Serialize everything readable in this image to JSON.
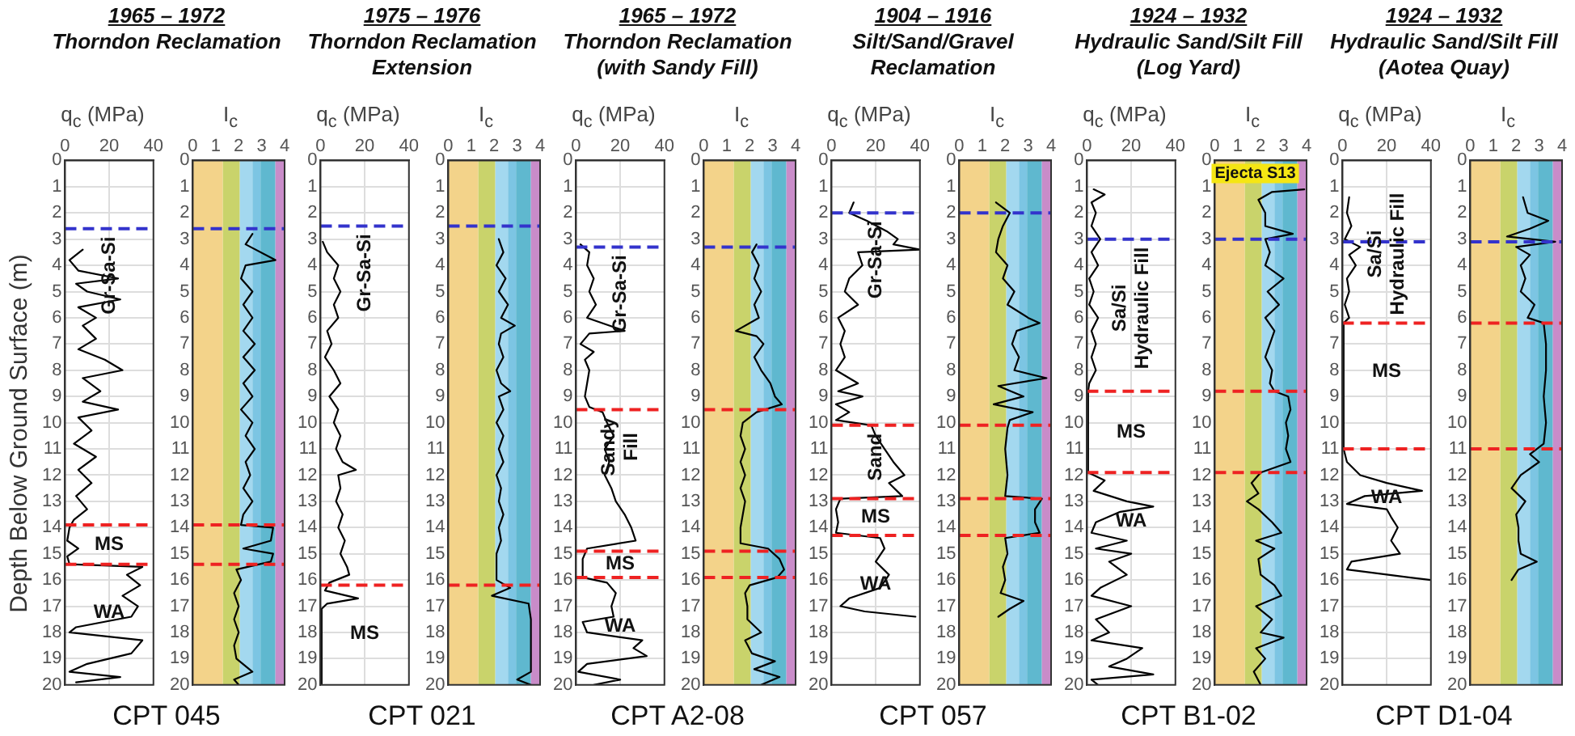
{
  "chart_data": [
    {
      "type": "line",
      "title": "1965 – 1972",
      "subtitle": "Thorndon Reclamation",
      "xlabel": "q$_{c}$ (MPa)",
      "ylabel": "Depth Below Ground Surface (m)",
      "xlim": [
        0,
        40
      ],
      "xticks": [
        0,
        20,
        40
      ],
      "ylim": [
        20,
        0
      ],
      "yticks": [
        0,
        1,
        2,
        3,
        4,
        5,
        6,
        7,
        8,
        9,
        10,
        11,
        12,
        13,
        14,
        15,
        16,
        17,
        18,
        19,
        20
      ],
      "grid": true,
      "series": [
        {
          "color": "#000000",
          "x": [
            8,
            2,
            6,
            24,
            5,
            10,
            25,
            6,
            14,
            8,
            14,
            6,
            18,
            26,
            8,
            16,
            8,
            24,
            6,
            12,
            4,
            14,
            6,
            12,
            5,
            10,
            4,
            2,
            1,
            6,
            1,
            2,
            35,
            28,
            34,
            26,
            33,
            30,
            5,
            2,
            35,
            30,
            10,
            2,
            25,
            5
          ],
          "values": [
            3.4,
            3.8,
            4.2,
            4.5,
            4.7,
            5.0,
            5.3,
            5.6,
            6.0,
            6.3,
            6.8,
            7.2,
            7.6,
            8.0,
            8.3,
            8.8,
            9.2,
            9.5,
            9.8,
            10.3,
            10.8,
            11.3,
            11.8,
            12.3,
            12.8,
            13.3,
            13.7,
            14.0,
            14.5,
            14.8,
            15.1,
            15.4,
            15.5,
            15.8,
            16.2,
            16.6,
            17.0,
            17.4,
            17.8,
            18.0,
            18.3,
            18.8,
            19.2,
            19.5,
            19.7,
            19.9
          ]
        }
      ],
      "ref_lines": [
        {
          "axis": "y",
          "value": 2.6,
          "color": "#3333cc",
          "line_style": "dashed",
          "label": "Gr-Sa-Si"
        },
        {
          "axis": "y",
          "value": 13.9,
          "color": "#ee2222",
          "line_style": "dashed",
          "label": "MS"
        },
        {
          "axis": "y",
          "value": 15.4,
          "color": "#ee2222",
          "line_style": "dashed",
          "label": "WA"
        }
      ],
      "annotations": [
        "CPT 045"
      ]
    },
    {
      "type": "line",
      "xlabel": "I$_{c}$",
      "xlim": [
        0,
        4
      ],
      "xticks": [
        0,
        1,
        2,
        3,
        4
      ],
      "ylim": [
        20,
        0
      ],
      "yticks": [
        0,
        1,
        2,
        3,
        4,
        5,
        6,
        7,
        8,
        9,
        10,
        11,
        12,
        13,
        14,
        15,
        16,
        17,
        18,
        19,
        20
      ],
      "bands": [
        {
          "axis": "x",
          "from": 0,
          "to": 1.31,
          "color": "#f3d38a"
        },
        {
          "axis": "x",
          "from": 1.31,
          "to": 2.05,
          "color": "#c9d36b"
        },
        {
          "axis": "x",
          "from": 2.05,
          "to": 2.6,
          "color": "#a3d8ef"
        },
        {
          "axis": "x",
          "from": 2.6,
          "to": 2.95,
          "color": "#7cc5e3"
        },
        {
          "axis": "x",
          "from": 2.95,
          "to": 3.6,
          "color": "#5fb8cf"
        },
        {
          "axis": "x",
          "from": 3.6,
          "to": 4,
          "color": "#c98cc9"
        }
      ],
      "series": [
        {
          "color": "#000000",
          "x": [
            2.6,
            2.3,
            3.6,
            2.3,
            2.1,
            2.6,
            2.2,
            2.6,
            2.2,
            2.7,
            2.2,
            2.7,
            2.2,
            2.6,
            2.1,
            2.6,
            2.3,
            2.7,
            2.3,
            2.5,
            2.2,
            2.6,
            2.2,
            2.1,
            3.5,
            3.4,
            2.2,
            3.5,
            3.4,
            1.9,
            2.1,
            1.8,
            2.0,
            1.8,
            2.0,
            1.8,
            1.9,
            2.6,
            1.8,
            2.0
          ],
          "values": [
            2.8,
            3.2,
            3.8,
            4.0,
            4.5,
            5,
            5.5,
            6,
            6.5,
            7,
            7.5,
            8,
            8.5,
            9,
            9.5,
            10,
            10.5,
            11,
            11.5,
            12,
            12.5,
            13,
            13.5,
            13.9,
            14.0,
            14.5,
            14.8,
            15.0,
            15.3,
            15.6,
            16,
            16.5,
            17,
            17.5,
            18,
            18.5,
            19,
            19.5,
            19.8,
            20
          ]
        }
      ],
      "ref_lines": [
        {
          "axis": "y",
          "value": 2.6,
          "color": "#3333cc",
          "line_style": "dashed"
        },
        {
          "axis": "y",
          "value": 13.9,
          "color": "#ee2222",
          "line_style": "dashed"
        },
        {
          "axis": "y",
          "value": 15.4,
          "color": "#ee2222",
          "line_style": "dashed"
        }
      ]
    },
    {
      "type": "line",
      "title": "1975 – 1976",
      "subtitle": "Thorndon Reclamation Extension",
      "xlabel": "q$_{c}$ (MPa)",
      "xlim": [
        0,
        40
      ],
      "xticks": [
        0,
        20,
        40
      ],
      "ylim": [
        20,
        0
      ],
      "yticks": [
        0,
        1,
        2,
        3,
        4,
        5,
        6,
        7,
        8,
        9,
        10,
        11,
        12,
        13,
        14,
        15,
        16,
        17,
        18,
        19,
        20
      ],
      "grid": true,
      "series": [
        {
          "color": "#000000",
          "x": [
            1,
            3,
            8,
            6,
            9,
            6,
            8,
            3,
            5,
            2,
            6,
            9,
            4,
            8,
            6,
            9,
            7,
            10,
            16,
            8,
            9,
            7,
            10,
            8,
            11,
            9,
            12,
            13,
            4,
            2,
            17,
            3,
            0.5,
            0.5
          ],
          "values": [
            3.1,
            3.5,
            4,
            4.5,
            5,
            5.5,
            6,
            6.5,
            7,
            7.5,
            8,
            8.5,
            9,
            9.5,
            10,
            10.5,
            11,
            11.5,
            11.8,
            12,
            12.5,
            13,
            13.5,
            14,
            14.5,
            15,
            15.5,
            15.8,
            16.1,
            16.4,
            16.7,
            16.9,
            17.1,
            20
          ]
        }
      ],
      "ref_lines": [
        {
          "axis": "y",
          "value": 2.5,
          "color": "#3333cc",
          "line_style": "dashed",
          "label": "Gr-Sa-Si"
        },
        {
          "axis": "y",
          "value": 16.2,
          "color": "#ee2222",
          "line_style": "dashed",
          "label": "MS"
        }
      ],
      "annotations": [
        "CPT 021"
      ]
    },
    {
      "type": "line",
      "xlabel": "I$_{c}$",
      "xlim": [
        0,
        4
      ],
      "xticks": [
        0,
        1,
        2,
        3,
        4
      ],
      "ylim": [
        20,
        0
      ],
      "yticks": [
        0,
        1,
        2,
        3,
        4,
        5,
        6,
        7,
        8,
        9,
        10,
        11,
        12,
        13,
        14,
        15,
        16,
        17,
        18,
        19,
        20
      ],
      "bands": [
        {
          "axis": "x",
          "from": 0,
          "to": 1.31,
          "color": "#f3d38a"
        },
        {
          "axis": "x",
          "from": 1.31,
          "to": 2.05,
          "color": "#c9d36b"
        },
        {
          "axis": "x",
          "from": 2.05,
          "to": 2.6,
          "color": "#a3d8ef"
        },
        {
          "axis": "x",
          "from": 2.6,
          "to": 2.95,
          "color": "#7cc5e3"
        },
        {
          "axis": "x",
          "from": 2.95,
          "to": 3.6,
          "color": "#5fb8cf"
        },
        {
          "axis": "x",
          "from": 3.6,
          "to": 4,
          "color": "#c98cc9"
        }
      ],
      "series": [
        {
          "color": "#000000",
          "x": [
            2.2,
            2.4,
            2.1,
            2.5,
            2.2,
            2.6,
            2.3,
            2.9,
            2.3,
            2.2,
            2.4,
            2.1,
            2.3,
            2.7,
            2.2,
            2.4,
            2.1,
            2.4,
            2.2,
            2.4,
            2.1,
            2.3,
            2.2,
            2.4,
            2.2,
            2.3,
            2.1,
            2.1,
            2.7,
            1.9,
            3.5,
            3.6,
            3.6,
            3.0,
            3.6
          ],
          "values": [
            3.0,
            3.5,
            4,
            4.5,
            5,
            5.5,
            6,
            6.3,
            6.6,
            7,
            7.5,
            8,
            8.5,
            8.8,
            9,
            9.5,
            10,
            10.5,
            11,
            11.5,
            12,
            12.5,
            13,
            13.5,
            14,
            14.5,
            15,
            16,
            16.3,
            16.6,
            16.9,
            17.5,
            19.5,
            19.8,
            20
          ]
        }
      ],
      "ref_lines": [
        {
          "axis": "y",
          "value": 2.5,
          "color": "#3333cc",
          "line_style": "dashed"
        },
        {
          "axis": "y",
          "value": 16.2,
          "color": "#ee2222",
          "line_style": "dashed"
        }
      ]
    },
    {
      "type": "line",
      "title": "1965 – 1972",
      "subtitle": "Thorndon Reclamation (with Sandy Fill)",
      "xlabel": "q$_{c}$ (MPa)",
      "xlim": [
        0,
        40
      ],
      "xticks": [
        0,
        20,
        40
      ],
      "ylim": [
        20,
        0
      ],
      "yticks": [
        0,
        1,
        2,
        3,
        4,
        5,
        6,
        7,
        8,
        9,
        10,
        11,
        12,
        13,
        14,
        15,
        16,
        17,
        18,
        19,
        20
      ],
      "grid": true,
      "series": [
        {
          "color": "#000000",
          "x": [
            2,
            6,
            5,
            8,
            6,
            9,
            5,
            22,
            6,
            2,
            8,
            4,
            6,
            5,
            4,
            6,
            12,
            14,
            17,
            13,
            15,
            13,
            16,
            18,
            22,
            25,
            27,
            5,
            3,
            3,
            14,
            18,
            16,
            17,
            3,
            5,
            30,
            26,
            32,
            5,
            1,
            20,
            8
          ],
          "values": [
            3.2,
            3.5,
            4,
            4.5,
            5,
            5.5,
            6,
            6.5,
            6.6,
            7,
            7.3,
            7.6,
            8,
            8.5,
            9,
            9.4,
            9.6,
            10,
            10.5,
            11,
            11.5,
            12,
            12.5,
            13,
            13.5,
            14,
            14.5,
            14.8,
            15.2,
            15.9,
            16.1,
            16.5,
            17,
            17.4,
            17.6,
            18,
            18.3,
            18.6,
            18.9,
            19.2,
            19.5,
            19.8,
            20
          ]
        }
      ],
      "ref_lines": [
        {
          "axis": "y",
          "value": 3.3,
          "color": "#3333cc",
          "line_style": "dashed",
          "label": "Gr-Sa-Si"
        },
        {
          "axis": "y",
          "value": 9.5,
          "color": "#ee2222",
          "line_style": "dashed",
          "label": "Sandy Fill"
        },
        {
          "axis": "y",
          "value": 14.9,
          "color": "#ee2222",
          "line_style": "dashed",
          "label": "MS"
        },
        {
          "axis": "y",
          "value": 15.9,
          "color": "#ee2222",
          "line_style": "dashed",
          "label": "WA"
        }
      ],
      "annotations": [
        "CPT A2-08"
      ]
    },
    {
      "type": "line",
      "xlabel": "I$_{c}$",
      "xlim": [
        0,
        4
      ],
      "xticks": [
        0,
        1,
        2,
        3,
        4
      ],
      "ylim": [
        20,
        0
      ],
      "yticks": [
        0,
        1,
        2,
        3,
        4,
        5,
        6,
        7,
        8,
        9,
        10,
        11,
        12,
        13,
        14,
        15,
        16,
        17,
        18,
        19,
        20
      ],
      "bands": [
        {
          "axis": "x",
          "from": 0,
          "to": 1.31,
          "color": "#f3d38a"
        },
        {
          "axis": "x",
          "from": 1.31,
          "to": 2.05,
          "color": "#c9d36b"
        },
        {
          "axis": "x",
          "from": 2.05,
          "to": 2.6,
          "color": "#a3d8ef"
        },
        {
          "axis": "x",
          "from": 2.6,
          "to": 2.95,
          "color": "#7cc5e3"
        },
        {
          "axis": "x",
          "from": 2.95,
          "to": 3.6,
          "color": "#5fb8cf"
        },
        {
          "axis": "x",
          "from": 3.6,
          "to": 4,
          "color": "#c98cc9"
        }
      ],
      "series": [
        {
          "color": "#000000",
          "x": [
            2.3,
            2.1,
            2.4,
            2.2,
            2.5,
            2.2,
            2.4,
            1.4,
            2.3,
            2.6,
            2.2,
            2.5,
            2.9,
            3.1,
            3.4,
            2.3,
            1.7,
            1.6,
            1.8,
            1.6,
            1.8,
            1.6,
            1.8,
            1.7,
            1.6,
            1.6,
            2.8,
            3.3,
            3.5,
            3.2,
            2.0,
            1.8,
            1.9,
            1.9,
            2.5,
            1.8,
            2.1,
            3.1,
            2.2,
            3.3,
            2.5
          ],
          "values": [
            3.2,
            3.5,
            4,
            4.5,
            5,
            5.5,
            6,
            6.5,
            6.7,
            7,
            7.5,
            8,
            8.5,
            9,
            9.3,
            9.6,
            10,
            10.5,
            11,
            11.5,
            12,
            12.5,
            13,
            13.5,
            14,
            14.6,
            14.8,
            15.2,
            15.6,
            15.9,
            16.2,
            16.5,
            17,
            17.5,
            18,
            18.3,
            18.8,
            19.1,
            19.4,
            19.7,
            20
          ]
        }
      ],
      "ref_lines": [
        {
          "axis": "y",
          "value": 3.3,
          "color": "#3333cc",
          "line_style": "dashed"
        },
        {
          "axis": "y",
          "value": 9.5,
          "color": "#ee2222",
          "line_style": "dashed"
        },
        {
          "axis": "y",
          "value": 14.9,
          "color": "#ee2222",
          "line_style": "dashed"
        },
        {
          "axis": "y",
          "value": 15.9,
          "color": "#ee2222",
          "line_style": "dashed"
        }
      ]
    },
    {
      "type": "line",
      "title": "1904 – 1916",
      "subtitle": "Silt/Sand/Gravel Reclamation",
      "xlabel": "q$_{c}$ (MPa)",
      "xlim": [
        0,
        40
      ],
      "xticks": [
        0,
        20,
        40
      ],
      "ylim": [
        20,
        0
      ],
      "yticks": [
        0,
        1,
        2,
        3,
        4,
        5,
        6,
        7,
        8,
        9,
        10,
        11,
        12,
        13,
        14,
        15,
        16,
        17,
        18,
        19,
        20
      ],
      "grid": true,
      "series": [
        {
          "color": "#000000",
          "x": [
            10,
            8,
            16,
            25,
            30,
            28,
            40,
            12,
            14,
            8,
            6,
            12,
            3,
            6,
            4,
            6,
            2,
            12,
            3,
            14,
            2,
            8,
            2,
            18,
            20,
            24,
            28,
            33,
            26,
            32,
            4,
            2,
            3,
            2,
            22,
            24,
            20,
            26,
            22,
            8,
            4,
            15,
            38
          ],
          "values": [
            1.6,
            2,
            2.3,
            2.7,
            3.0,
            3.2,
            3.4,
            3.5,
            4,
            4.5,
            5,
            5.5,
            6,
            6.5,
            7,
            7.5,
            8,
            8.5,
            8.8,
            9,
            9.3,
            9.6,
            9.9,
            10.1,
            10.5,
            11,
            11.5,
            12,
            12.3,
            12.8,
            12.9,
            13.3,
            13.8,
            14.2,
            14.4,
            14.8,
            15.3,
            15.8,
            16.3,
            16.7,
            17,
            17.2,
            17.4
          ]
        }
      ],
      "ref_lines": [
        {
          "axis": "y",
          "value": 2.0,
          "color": "#3333cc",
          "line_style": "dashed",
          "label": "Gr-Sa-Si"
        },
        {
          "axis": "y",
          "value": 10.1,
          "color": "#ee2222",
          "line_style": "dashed",
          "label": "Sand"
        },
        {
          "axis": "y",
          "value": 12.9,
          "color": "#ee2222",
          "line_style": "dashed",
          "label": "MS"
        },
        {
          "axis": "y",
          "value": 14.3,
          "color": "#ee2222",
          "line_style": "dashed",
          "label": "WA"
        }
      ],
      "annotations": [
        "CPT 057"
      ]
    },
    {
      "type": "line",
      "xlabel": "I$_{c}$",
      "xlim": [
        0,
        4
      ],
      "xticks": [
        0,
        1,
        2,
        3,
        4
      ],
      "ylim": [
        20,
        0
      ],
      "yticks": [
        0,
        1,
        2,
        3,
        4,
        5,
        6,
        7,
        8,
        9,
        10,
        11,
        12,
        13,
        14,
        15,
        16,
        17,
        18,
        19,
        20
      ],
      "bands": [
        {
          "axis": "x",
          "from": 0,
          "to": 1.31,
          "color": "#f3d38a"
        },
        {
          "axis": "x",
          "from": 1.31,
          "to": 2.05,
          "color": "#c9d36b"
        },
        {
          "axis": "x",
          "from": 2.05,
          "to": 2.6,
          "color": "#a3d8ef"
        },
        {
          "axis": "x",
          "from": 2.6,
          "to": 2.95,
          "color": "#7cc5e3"
        },
        {
          "axis": "x",
          "from": 2.95,
          "to": 3.6,
          "color": "#5fb8cf"
        },
        {
          "axis": "x",
          "from": 3.6,
          "to": 4,
          "color": "#c98cc9"
        }
      ],
      "series": [
        {
          "color": "#000000",
          "x": [
            1.6,
            2.2,
            1.9,
            1.7,
            1.6,
            2.1,
            1.9,
            2.4,
            2.1,
            3.0,
            3.5,
            2.5,
            2.3,
            2.6,
            2.4,
            3.8,
            1.7,
            2.8,
            1.5,
            3.2,
            2.2,
            2.1,
            2.0,
            2.1,
            2.0,
            3.6,
            3.3,
            3.3,
            3.5,
            2.0,
            2.1,
            1.9,
            2.0,
            1.8,
            2.8,
            2.2,
            1.7
          ],
          "values": [
            1.6,
            2,
            2.5,
            3,
            3.5,
            4,
            4.5,
            5,
            5.5,
            6,
            6.2,
            6.5,
            7,
            7.5,
            8,
            8.3,
            8.6,
            9,
            9.3,
            9.6,
            9.9,
            10.2,
            11,
            12,
            12.8,
            12.9,
            13.3,
            13.8,
            14.2,
            14.4,
            15,
            15.5,
            16,
            16.5,
            16.8,
            17.1,
            17.4
          ]
        }
      ],
      "ref_lines": [
        {
          "axis": "y",
          "value": 2.0,
          "color": "#3333cc",
          "line_style": "dashed"
        },
        {
          "axis": "y",
          "value": 10.1,
          "color": "#ee2222",
          "line_style": "dashed"
        },
        {
          "axis": "y",
          "value": 12.9,
          "color": "#ee2222",
          "line_style": "dashed"
        },
        {
          "axis": "y",
          "value": 14.3,
          "color": "#ee2222",
          "line_style": "dashed"
        }
      ]
    },
    {
      "type": "line",
      "title": "1924 – 1932",
      "subtitle": "Hydraulic Sand/Silt Fill (Log Yard)",
      "xlabel": "q$_{c}$ (MPa)",
      "xlim": [
        0,
        40
      ],
      "xticks": [
        0,
        20,
        40
      ],
      "ylim": [
        20,
        0
      ],
      "yticks": [
        0,
        1,
        2,
        3,
        4,
        5,
        6,
        7,
        8,
        9,
        10,
        11,
        12,
        13,
        14,
        15,
        16,
        17,
        18,
        19,
        20
      ],
      "grid": true,
      "series": [
        {
          "color": "#000000",
          "x": [
            3,
            8,
            2,
            4,
            2,
            6,
            2,
            5,
            1,
            3,
            1,
            5,
            2,
            4,
            2,
            4,
            1,
            0.5,
            0.5,
            8,
            3,
            18,
            30,
            15,
            4,
            2,
            18,
            4,
            20,
            10,
            18,
            6,
            2,
            20,
            4,
            10,
            2,
            25,
            18,
            10,
            30,
            2,
            5
          ],
          "values": [
            1.1,
            1.3,
            1.6,
            2,
            2.5,
            3,
            3.5,
            4,
            4.5,
            5,
            5.5,
            6,
            6.5,
            7,
            7.5,
            8,
            8.5,
            8.8,
            11.9,
            12.2,
            12.6,
            13,
            13.2,
            13.4,
            13.8,
            14.2,
            14.5,
            14.8,
            15,
            15.3,
            15.8,
            16.3,
            16.6,
            17,
            17.5,
            18,
            18.3,
            18.6,
            19,
            19.3,
            19.6,
            19.8,
            20
          ]
        }
      ],
      "ref_lines": [
        {
          "axis": "y",
          "value": 3.0,
          "color": "#3333cc",
          "line_style": "dashed",
          "label": "Sa/Si Hydraulic Fill"
        },
        {
          "axis": "y",
          "value": 8.8,
          "color": "#ee2222",
          "line_style": "dashed",
          "label": "MS"
        },
        {
          "axis": "y",
          "value": 11.9,
          "color": "#ee2222",
          "line_style": "dashed",
          "label": "WA"
        }
      ],
      "annotations": [
        "CPT B1-02"
      ]
    },
    {
      "type": "line",
      "xlabel": "I$_{c}$",
      "xlim": [
        0,
        4
      ],
      "xticks": [
        0,
        1,
        2,
        3,
        4
      ],
      "ylim": [
        20,
        0
      ],
      "yticks": [
        0,
        1,
        2,
        3,
        4,
        5,
        6,
        7,
        8,
        9,
        10,
        11,
        12,
        13,
        14,
        15,
        16,
        17,
        18,
        19,
        20
      ],
      "bands": [
        {
          "axis": "x",
          "from": 0,
          "to": 1.31,
          "color": "#f3d38a"
        },
        {
          "axis": "x",
          "from": 1.31,
          "to": 2.05,
          "color": "#c9d36b"
        },
        {
          "axis": "x",
          "from": 2.05,
          "to": 2.6,
          "color": "#a3d8ef"
        },
        {
          "axis": "x",
          "from": 2.6,
          "to": 2.95,
          "color": "#7cc5e3"
        },
        {
          "axis": "x",
          "from": 2.95,
          "to": 3.6,
          "color": "#5fb8cf"
        },
        {
          "axis": "x",
          "from": 3.6,
          "to": 4,
          "color": "#c98cc9"
        }
      ],
      "series": [
        {
          "color": "#000000",
          "x": [
            3.9,
            2.5,
            1.9,
            2.2,
            2.2,
            3.4,
            2.2,
            2.4,
            2.2,
            3.0,
            2.3,
            2.8,
            2.2,
            2.6,
            2.4,
            2.2,
            2.5,
            2.4,
            2.6,
            3.2,
            3.3,
            3.1,
            3.2,
            3.1,
            3.3,
            2.0,
            1.6,
            1.9,
            1.4,
            1.9,
            2.5,
            2.9,
            1.8,
            2.6,
            1.9,
            2.0,
            2.6,
            2.9,
            1.8,
            2.5,
            2.0,
            3.0,
            1.8,
            2.2,
            1.7,
            2.0
          ],
          "values": [
            1.1,
            1.2,
            1.5,
            2,
            2.5,
            2.8,
            3.0,
            3.5,
            4,
            4.5,
            5,
            5.5,
            6,
            6.5,
            7,
            7.5,
            8,
            8.5,
            8.8,
            9,
            9.5,
            10,
            10.5,
            11,
            11.5,
            11.9,
            12.3,
            12.7,
            13,
            13.3,
            13.8,
            14.2,
            14.5,
            14.8,
            15.2,
            15.8,
            16.2,
            16.6,
            17,
            17.5,
            18,
            18.2,
            18.6,
            19,
            19.5,
            20
          ]
        }
      ],
      "ref_lines": [
        {
          "axis": "y",
          "value": 3.0,
          "color": "#3333cc",
          "line_style": "dashed"
        },
        {
          "axis": "y",
          "value": 8.8,
          "color": "#ee2222",
          "line_style": "dashed"
        },
        {
          "axis": "y",
          "value": 11.9,
          "color": "#ee2222",
          "line_style": "dashed"
        }
      ],
      "annotations": [
        "Ejecta S13"
      ]
    },
    {
      "type": "line",
      "title": "1924 – 1932",
      "subtitle": "Hydraulic Sand/Silt Fill (Aotea Quay)",
      "xlabel": "q$_{c}$ (MPa)",
      "xlim": [
        0,
        40
      ],
      "xticks": [
        0,
        20,
        40
      ],
      "ylim": [
        20,
        0
      ],
      "yticks": [
        0,
        1,
        2,
        3,
        4,
        5,
        6,
        7,
        8,
        9,
        10,
        11,
        12,
        13,
        14,
        15,
        16,
        17,
        18,
        19,
        20
      ],
      "grid": true,
      "series": [
        {
          "color": "#000000",
          "x": [
            3,
            2,
            4,
            1,
            8,
            3,
            6,
            2,
            3,
            1,
            3,
            0.5,
            0.5,
            2,
            8,
            20,
            36,
            10,
            2,
            20,
            22,
            25,
            22,
            26,
            4,
            2,
            30,
            40
          ],
          "values": [
            1.4,
            2,
            2.5,
            3,
            3.3,
            3.6,
            4,
            4.5,
            5,
            5.5,
            6,
            6.2,
            11,
            11.5,
            12,
            12.3,
            12.6,
            12.8,
            13.1,
            13.3,
            13.6,
            14,
            14.5,
            15,
            15.3,
            15.6,
            15.9,
            16
          ]
        }
      ],
      "ref_lines": [
        {
          "axis": "y",
          "value": 3.1,
          "color": "#3333cc",
          "line_style": "dashed",
          "label": "Sa/Si Hydraulic Fill"
        },
        {
          "axis": "y",
          "value": 6.2,
          "color": "#ee2222",
          "line_style": "dashed",
          "label": "MS"
        },
        {
          "axis": "y",
          "value": 11.0,
          "color": "#ee2222",
          "line_style": "dashed",
          "label": "WA"
        }
      ],
      "annotations": [
        "CPT D1-04"
      ]
    },
    {
      "type": "line",
      "xlabel": "I$_{c}$",
      "xlim": [
        0,
        4
      ],
      "xticks": [
        0,
        1,
        2,
        3,
        4
      ],
      "ylim": [
        20,
        0
      ],
      "yticks": [
        0,
        1,
        2,
        3,
        4,
        5,
        6,
        7,
        8,
        9,
        10,
        11,
        12,
        13,
        14,
        15,
        16,
        17,
        18,
        19,
        20
      ],
      "bands": [
        {
          "axis": "x",
          "from": 0,
          "to": 1.31,
          "color": "#f3d38a"
        },
        {
          "axis": "x",
          "from": 1.31,
          "to": 2.05,
          "color": "#c9d36b"
        },
        {
          "axis": "x",
          "from": 2.05,
          "to": 2.6,
          "color": "#a3d8ef"
        },
        {
          "axis": "x",
          "from": 2.6,
          "to": 2.95,
          "color": "#7cc5e3"
        },
        {
          "axis": "x",
          "from": 2.95,
          "to": 3.6,
          "color": "#5fb8cf"
        },
        {
          "axis": "x",
          "from": 3.6,
          "to": 4,
          "color": "#c98cc9"
        }
      ],
      "series": [
        {
          "color": "#000000",
          "x": [
            2.3,
            2.5,
            3.4,
            2.6,
            1.6,
            3.7,
            2.0,
            2.6,
            2.2,
            2.4,
            2.2,
            2.8,
            2.5,
            3.2,
            3.3,
            3.3,
            3.2,
            3.3,
            3.2,
            2.6,
            3.0,
            2.2,
            1.8,
            2.4,
            2.0,
            2.1,
            2.1,
            2.2,
            2.9,
            2.1,
            1.8
          ],
          "values": [
            1.4,
            2,
            2.3,
            2.6,
            2.9,
            3.1,
            3.3,
            3.6,
            4,
            4.5,
            5,
            5.5,
            6,
            6.2,
            7,
            8,
            9,
            10,
            10.8,
            11.2,
            11.5,
            12,
            12.5,
            13,
            13.5,
            14,
            14.5,
            15,
            15.3,
            15.6,
            16
          ]
        }
      ],
      "ref_lines": [
        {
          "axis": "y",
          "value": 3.1,
          "color": "#3333cc",
          "line_style": "dashed"
        },
        {
          "axis": "y",
          "value": 6.2,
          "color": "#ee2222",
          "line_style": "dashed"
        },
        {
          "axis": "y",
          "value": 11.0,
          "color": "#ee2222",
          "line_style": "dashed"
        }
      ]
    }
  ]
}
